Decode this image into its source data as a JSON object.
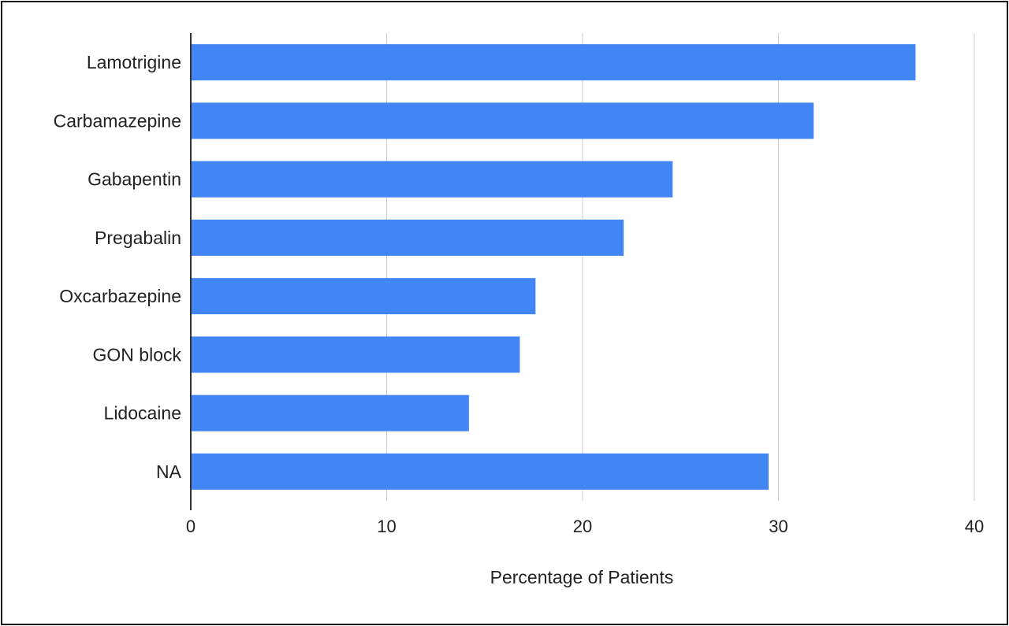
{
  "chart_data": {
    "type": "bar",
    "orientation": "horizontal",
    "categories": [
      "Lamotrigine",
      "Carbamazepine",
      "Gabapentin",
      "Pregabalin",
      "Oxcarbazepine",
      "GON block",
      "Lidocaine",
      "NA"
    ],
    "values": [
      37.0,
      31.8,
      24.6,
      22.1,
      17.6,
      16.8,
      14.2,
      29.5
    ],
    "xlabel": "Percentage of Patients",
    "ylabel": "",
    "title": "",
    "xlim": [
      0,
      40
    ],
    "x_ticks": [
      "0",
      "10",
      "20",
      "30",
      "40"
    ],
    "grid": "vertical",
    "legend": "none",
    "bar_color": "#4285f4",
    "grid_color": "#cccccc",
    "axis_color": "#333333"
  }
}
